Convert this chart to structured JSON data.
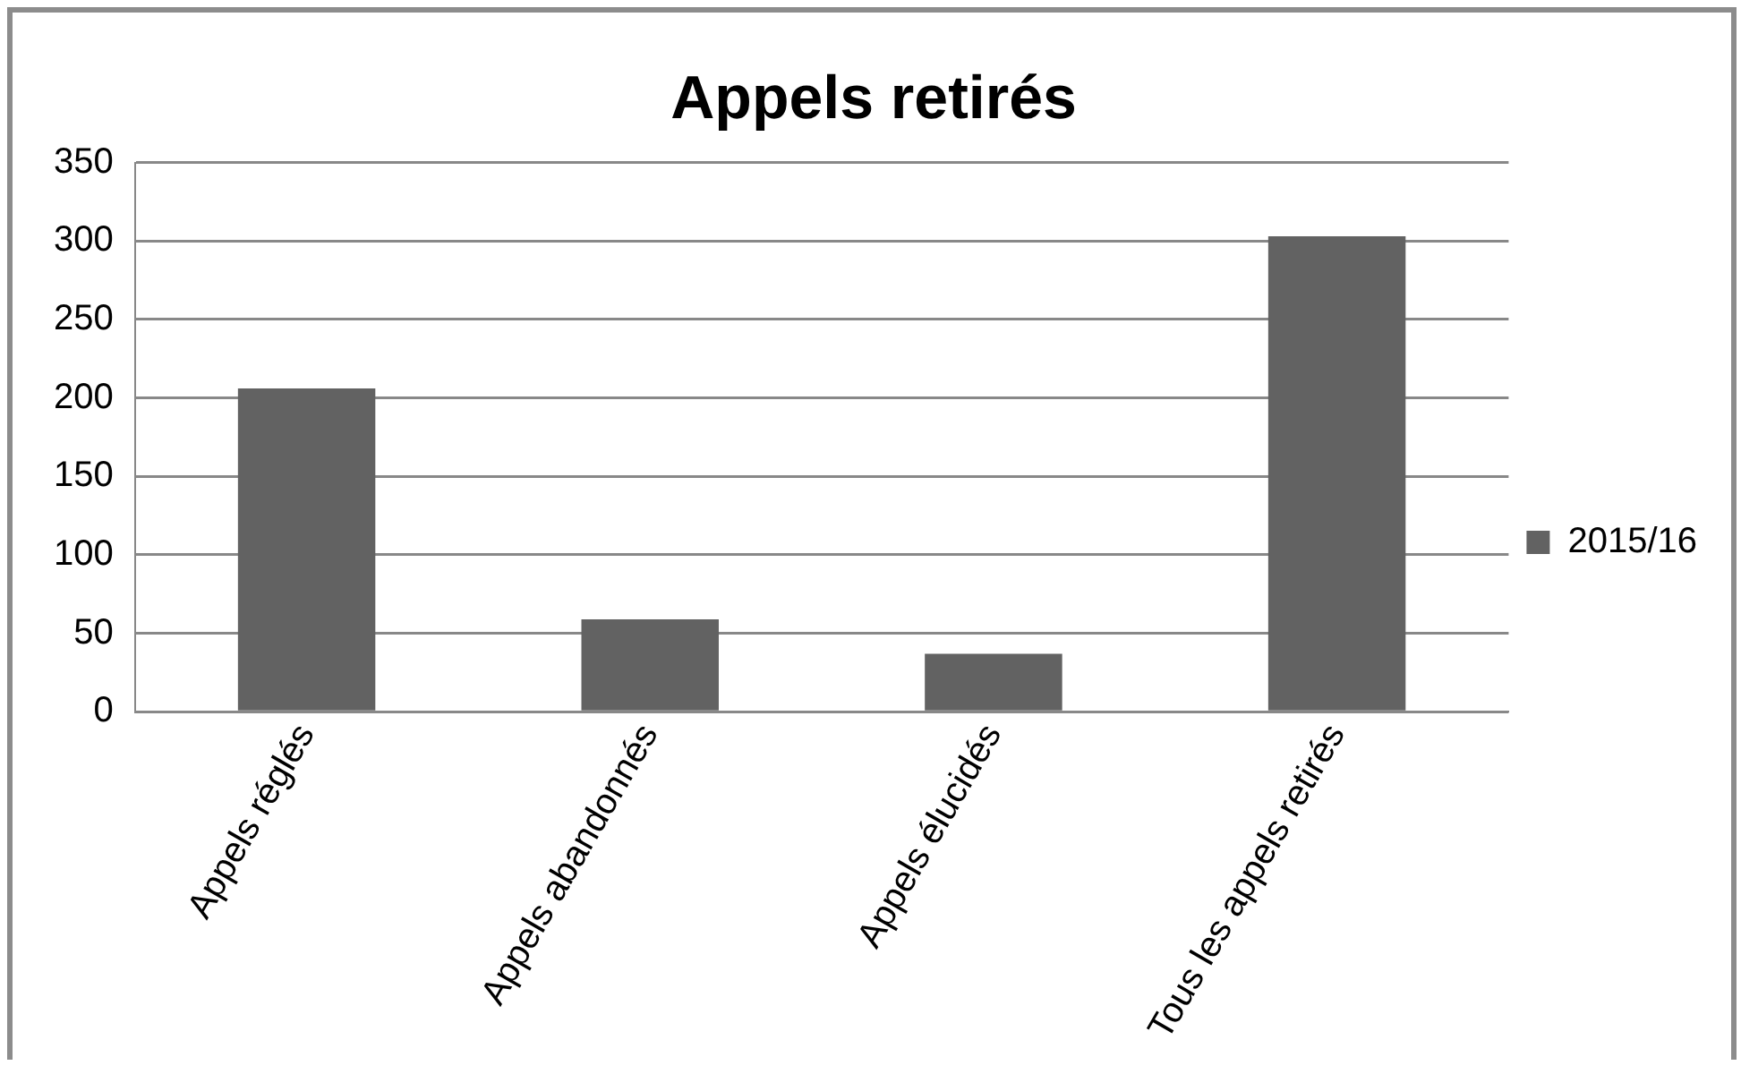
{
  "chart_data": {
    "type": "bar",
    "title": "Appels retirés",
    "categories": [
      "Appels réglés",
      "Appels abandonnés",
      "Appels élucidés",
      "Tous les appels retirés"
    ],
    "series": [
      {
        "name": "2015/16",
        "color": "#626262",
        "values": [
          206,
          59,
          37,
          303
        ]
      }
    ],
    "ylim": [
      0,
      350
    ],
    "yticks": [
      0,
      50,
      100,
      150,
      200,
      250,
      300,
      350
    ],
    "grid": "y",
    "legend": "right"
  }
}
